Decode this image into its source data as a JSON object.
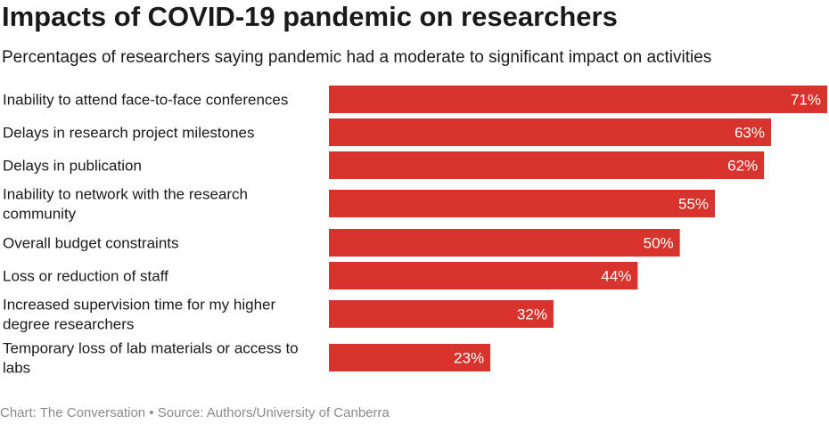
{
  "header": {
    "title": "Impacts of COVID-19 pandemic on researchers",
    "subtitle": "Percentages of researchers saying pandemic had a moderate to significant impact on activities"
  },
  "footer": {
    "credit": "Chart: The Conversation • Source: Authors/University of Canberra"
  },
  "colors": {
    "bar": "#d8332c",
    "bar_label": "#ffffff",
    "text": "#1a1a1a"
  },
  "chart_data": {
    "type": "bar",
    "orientation": "horizontal",
    "categories": [
      "Inability to attend face-to-face conferences",
      "Delays in research project milestones",
      "Delays in publication",
      "Inability to network with the research community",
      "Overall budget constraints",
      "Loss or reduction of staff",
      "Increased supervision time for my higher degree researchers",
      "Temporary loss of lab materials or access to labs"
    ],
    "values": [
      71,
      63,
      62,
      55,
      50,
      44,
      32,
      23
    ],
    "value_labels": [
      "71%",
      "63%",
      "62%",
      "55%",
      "50%",
      "44%",
      "32%",
      "23%"
    ],
    "xlim": [
      0,
      71
    ],
    "grid": false,
    "legend": "none"
  }
}
